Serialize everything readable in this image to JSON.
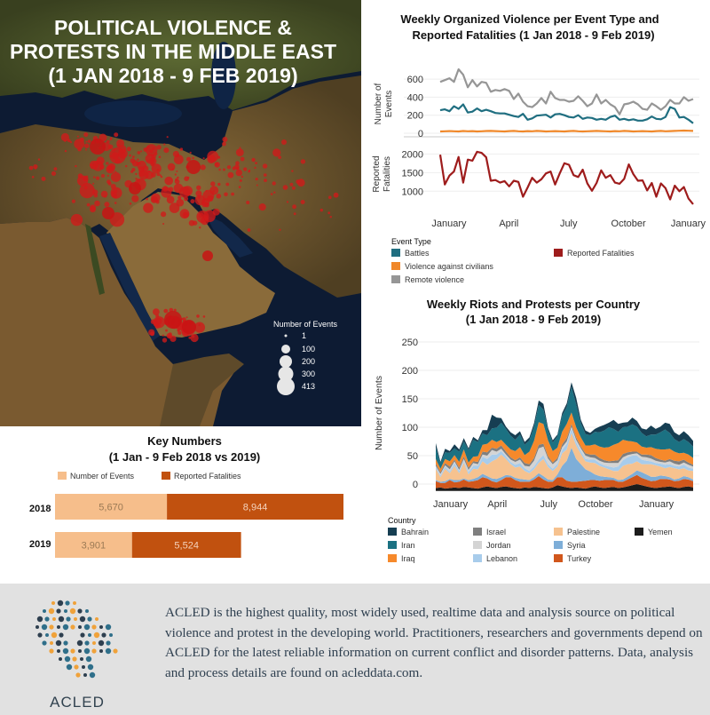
{
  "map": {
    "title_lines": [
      "POLITICAL VIOLENCE &",
      "PROTESTS IN THE MIDDLE EAST",
      "(1 JAN 2018 - 9 FEB 2019)"
    ],
    "legend_title": "Number of Events",
    "legend_sizes": [
      "1",
      "100",
      "200",
      "300",
      "413"
    ]
  },
  "footer": {
    "text": "ACLED is the highest quality, most widely used, realtime data and analysis source on political violence and protest in the developing world. Practitioners, researchers and governments depend on ACLED for the latest reliable information on current conflict and disorder patterns. Data, analysis and process details are found on acleddata.com.",
    "logo_word": "ACLED"
  },
  "chart_data": [
    {
      "type": "line",
      "title_lines": [
        "Weekly Organized Violence per Event Type and",
        "Reported Fatalities (1 Jan 2018 - 9 Feb 2019)"
      ],
      "x_tick_labels": [
        "January",
        "April",
        "July",
        "October",
        "January"
      ],
      "x_tick_weeks": [
        0,
        13,
        26,
        39,
        52
      ],
      "legend_title": "Event Type",
      "top_panel": {
        "ylabel_lines": [
          "Number of",
          "Events"
        ],
        "yticks": [
          0,
          200,
          400,
          600
        ],
        "ylim": [
          0,
          700
        ],
        "series": [
          {
            "name": "Battles",
            "color": "#1f6e80",
            "values": [
              255,
              265,
              245,
              300,
              270,
              320,
              230,
              240,
              275,
              245,
              260,
              245,
              225,
              220,
              220,
              205,
              190,
              180,
              215,
              150,
              165,
              195,
              200,
              205,
              175,
              210,
              215,
              200,
              180,
              175,
              200,
              160,
              175,
              170,
              150,
              160,
              150,
              180,
              195,
              150,
              160,
              145,
              155,
              140,
              140,
              155,
              185,
              160,
              155,
              180,
              290,
              270,
              175,
              180,
              150,
              110
            ]
          },
          {
            "name": "Violence against civilians",
            "color": "#f0882a",
            "values": [
              20,
              22,
              24,
              22,
              20,
              25,
              22,
              24,
              20,
              22,
              25,
              26,
              24,
              22,
              20,
              24,
              26,
              22,
              20,
              24,
              22,
              26,
              24,
              20,
              22,
              24,
              22,
              20,
              24,
              26,
              22,
              20,
              22,
              24,
              26,
              24,
              22,
              20,
              24,
              22,
              26,
              24,
              20,
              22,
              24,
              22,
              20,
              24,
              26,
              22,
              24,
              26,
              28,
              30,
              28,
              26
            ]
          },
          {
            "name": "Remote violence",
            "color": "#969696",
            "values": [
              570,
              590,
              610,
              570,
              710,
              650,
              510,
              590,
              520,
              570,
              560,
              460,
              480,
              470,
              490,
              470,
              380,
              440,
              350,
              300,
              290,
              330,
              390,
              330,
              460,
              390,
              370,
              370,
              350,
              360,
              410,
              360,
              300,
              330,
              430,
              330,
              370,
              320,
              290,
              210,
              320,
              330,
              350,
              320,
              270,
              260,
              330,
              300,
              260,
              300,
              370,
              330,
              330,
              400,
              360,
              380
            ]
          }
        ]
      },
      "bottom_panel": {
        "ylabel_lines": [
          "Reported",
          "Fatalities"
        ],
        "yticks": [
          1000,
          1500,
          2000
        ],
        "ylim": [
          600,
          2200
        ],
        "series": [
          {
            "name": "Reported Fatalities",
            "color": "#9e1c1c",
            "values": [
              1980,
              1180,
              1420,
              1530,
              1920,
              1230,
              1850,
              1820,
              2060,
              2030,
              1910,
              1280,
              1300,
              1230,
              1270,
              1130,
              1280,
              1250,
              850,
              1100,
              1360,
              1230,
              1320,
              1480,
              1530,
              1180,
              1480,
              1750,
              1710,
              1430,
              1380,
              1580,
              1210,
              1010,
              1220,
              1560,
              1360,
              1430,
              1230,
              1200,
              1330,
              1720,
              1460,
              1280,
              1290,
              1020,
              1220,
              850,
              1210,
              1080,
              780,
              1150,
              1000,
              1110,
              800,
              650
            ]
          }
        ]
      }
    },
    {
      "type": "area",
      "stacked": true,
      "title_lines": [
        "Weekly Riots and Protests per Country",
        "(1 Jan 2018 - 9 Feb 2019)"
      ],
      "ylabel": "Number of Events",
      "yticks": [
        0,
        50,
        100,
        150,
        200,
        250
      ],
      "ylim": [
        -12,
        260
      ],
      "x_tick_labels": [
        "January",
        "April",
        "July",
        "October",
        "January"
      ],
      "x_tick_weeks": [
        2,
        12,
        23,
        33,
        46
      ],
      "legend_title": "Country",
      "series": [
        {
          "name": "Yemen",
          "color": "#1c1c1c",
          "values": [
            5,
            6,
            4,
            5,
            6,
            5,
            7,
            6,
            5,
            4,
            6,
            8,
            6,
            5,
            7,
            8,
            6,
            5,
            4,
            6,
            5,
            7,
            6,
            5,
            4,
            6,
            10,
            8,
            6,
            5,
            6,
            5,
            4,
            6,
            8,
            6,
            5,
            6,
            7,
            5,
            6,
            8,
            10,
            12,
            10,
            8,
            6,
            5,
            6,
            7,
            8,
            6,
            5,
            7,
            8,
            6
          ]
        },
        {
          "name": "Turkey",
          "color": "#d1571c",
          "values": [
            12,
            8,
            10,
            14,
            9,
            11,
            13,
            10,
            12,
            15,
            18,
            14,
            11,
            10,
            12,
            16,
            18,
            14,
            12,
            10,
            11,
            13,
            20,
            15,
            12,
            10,
            14,
            16,
            12,
            11,
            10,
            12,
            14,
            13,
            11,
            12,
            14,
            13,
            12,
            11,
            10,
            12,
            14,
            16,
            13,
            12,
            11,
            13,
            15,
            14,
            12,
            11,
            13,
            14,
            12,
            11
          ]
        },
        {
          "name": "Syria",
          "color": "#7eaed8",
          "values": [
            2,
            2,
            3,
            2,
            4,
            3,
            2,
            3,
            4,
            5,
            6,
            4,
            5,
            6,
            5,
            4,
            3,
            4,
            5,
            4,
            3,
            4,
            5,
            6,
            4,
            3,
            5,
            20,
            35,
            60,
            40,
            30,
            20,
            15,
            10,
            8,
            6,
            5,
            4,
            3,
            4,
            5,
            6,
            8,
            10,
            9,
            8,
            7,
            6,
            5,
            4,
            3,
            4,
            5,
            4,
            3
          ]
        },
        {
          "name": "Palestine",
          "color": "#f6c28f",
          "values": [
            20,
            8,
            22,
            10,
            25,
            12,
            28,
            10,
            18,
            14,
            22,
            20,
            30,
            35,
            40,
            28,
            20,
            18,
            22,
            15,
            12,
            14,
            18,
            30,
            22,
            16,
            14,
            22,
            20,
            26,
            24,
            18,
            14,
            16,
            20,
            18,
            16,
            14,
            12,
            16,
            24,
            22,
            18,
            16,
            14,
            18,
            22,
            20,
            16,
            14,
            18,
            20,
            16,
            14,
            12,
            15
          ]
        },
        {
          "name": "Lebanon",
          "color": "#a8cceb",
          "values": [
            3,
            3,
            4,
            3,
            5,
            4,
            3,
            4,
            5,
            6,
            8,
            10,
            12,
            8,
            6,
            5,
            4,
            5,
            6,
            5,
            4,
            5,
            6,
            7,
            5,
            4,
            5,
            6,
            10,
            8,
            6,
            5,
            4,
            5,
            6,
            5,
            4,
            5,
            6,
            8,
            10,
            12,
            14,
            10,
            8,
            6,
            5,
            4,
            5,
            6,
            5,
            4,
            5,
            6,
            5,
            4
          ]
        },
        {
          "name": "Jordan",
          "color": "#d4d4d4",
          "values": [
            2,
            3,
            2,
            4,
            3,
            2,
            3,
            4,
            5,
            3,
            4,
            6,
            8,
            5,
            4,
            3,
            4,
            5,
            6,
            4,
            8,
            10,
            20,
            15,
            10,
            8,
            6,
            5,
            4,
            3,
            4,
            5,
            6,
            4,
            3,
            4,
            5,
            6,
            8,
            6,
            5,
            4,
            3,
            4,
            5,
            6,
            5,
            4,
            3,
            4,
            5,
            4,
            3,
            4,
            5,
            4
          ]
        },
        {
          "name": "Israel",
          "color": "#7f7f7f",
          "values": [
            4,
            3,
            4,
            5,
            3,
            4,
            5,
            4,
            3,
            4,
            5,
            6,
            4,
            5,
            6,
            5,
            4,
            3,
            4,
            5,
            4,
            5,
            6,
            5,
            4,
            3,
            4,
            5,
            6,
            5,
            4,
            3,
            4,
            5,
            6,
            5,
            4,
            3,
            4,
            5,
            6,
            5,
            4,
            3,
            4,
            5,
            6,
            5,
            4,
            3,
            4,
            5,
            6,
            5,
            4,
            3
          ]
        },
        {
          "name": "Iraq",
          "color": "#f6892b",
          "values": [
            8,
            6,
            7,
            9,
            8,
            10,
            12,
            9,
            8,
            10,
            12,
            15,
            14,
            12,
            10,
            12,
            14,
            16,
            18,
            14,
            22,
            30,
            40,
            35,
            28,
            20,
            18,
            22,
            25,
            20,
            18,
            16,
            14,
            16,
            18,
            20,
            22,
            25,
            28,
            30,
            25,
            20,
            18,
            16,
            14,
            12,
            14,
            16,
            18,
            20,
            18,
            16,
            14,
            12,
            14,
            12
          ]
        },
        {
          "name": "Iran",
          "color": "#1b7182",
          "values": [
            20,
            10,
            12,
            15,
            12,
            18,
            14,
            22,
            30,
            25,
            20,
            15,
            20,
            25,
            30,
            28,
            24,
            20,
            22,
            18,
            20,
            25,
            30,
            25,
            18,
            15,
            20,
            28,
            30,
            45,
            40,
            25,
            20,
            18,
            22,
            25,
            30,
            35,
            28,
            20,
            22,
            25,
            30,
            28,
            24,
            20,
            22,
            25,
            30,
            35,
            28,
            22,
            20,
            24,
            22,
            20
          ]
        },
        {
          "name": "Bahrain",
          "color": "#163e52",
          "values": [
            8,
            2,
            6,
            3,
            7,
            4,
            6,
            3,
            5,
            3,
            6,
            9,
            24,
            18,
            8,
            4,
            6,
            8,
            6,
            5,
            5,
            6,
            8,
            10,
            4,
            4,
            3,
            5,
            6,
            8,
            12,
            6,
            6,
            4,
            5,
            10,
            10,
            8,
            16,
            14,
            8,
            8,
            12,
            10,
            8,
            12,
            16,
            10,
            10,
            12,
            16,
            12,
            12,
            14,
            12,
            10
          ]
        }
      ]
    },
    {
      "type": "bar",
      "stacked": true,
      "orientation": "horizontal",
      "title_lines": [
        "Key Numbers",
        "(1 Jan - 9 Feb 2018 vs 2019)"
      ],
      "categories": [
        "2018",
        "2019"
      ],
      "series": [
        {
          "name": "Number of Events",
          "color": "#f6be8b",
          "values": [
            5670,
            3901
          ],
          "labels": [
            "5,670",
            "3,901"
          ]
        },
        {
          "name": "Reported Fatalities",
          "color": "#c1510f",
          "values": [
            8944,
            5524
          ],
          "labels": [
            "8,944",
            "5,524"
          ]
        }
      ]
    }
  ]
}
